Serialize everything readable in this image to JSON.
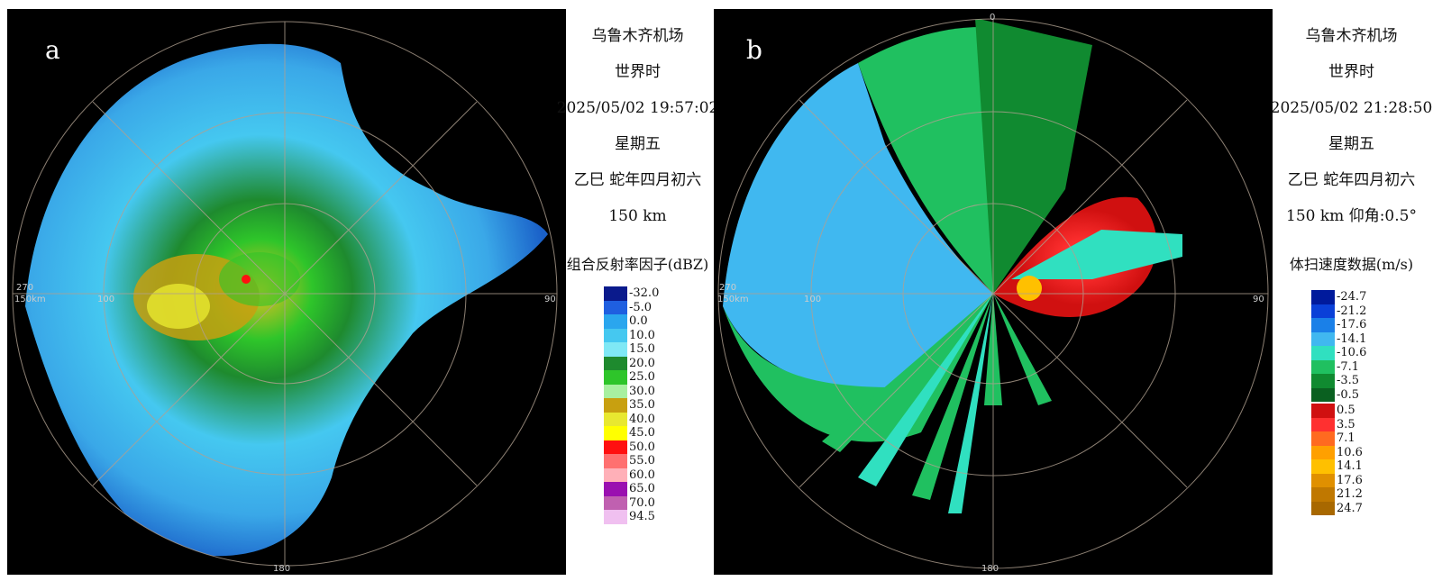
{
  "panels": [
    {
      "letter": "a",
      "station": "乌鲁木齐机场",
      "time_label": "世界时",
      "datetime": "2025/05/02 19:57:02",
      "weekday": "星期五",
      "lunar": "乙巳 蛇年四月初六",
      "range_text": "150 km",
      "legend_title": "组合反射率因子(dBZ)",
      "legend": [
        {
          "label": "-32.0",
          "color": "#0a1a8c"
        },
        {
          "label": "-5.0",
          "color": "#1f5fe0"
        },
        {
          "label": "0.0",
          "color": "#2aa6ee"
        },
        {
          "label": "10.0",
          "color": "#45c8f0"
        },
        {
          "label": "15.0",
          "color": "#7fe8f5"
        },
        {
          "label": "20.0",
          "color": "#1e8a2e"
        },
        {
          "label": "25.0",
          "color": "#2ec52a"
        },
        {
          "label": "30.0",
          "color": "#a8f0a0"
        },
        {
          "label": "35.0",
          "color": "#c8a010"
        },
        {
          "label": "40.0",
          "color": "#e8e830"
        },
        {
          "label": "45.0",
          "color": "#ffff00"
        },
        {
          "label": "50.0",
          "color": "#ff1010"
        },
        {
          "label": "55.0",
          "color": "#ff7070"
        },
        {
          "label": "60.0",
          "color": "#ffb0b8"
        },
        {
          "label": "65.0",
          "color": "#9a10b0"
        },
        {
          "label": "70.0",
          "color": "#c060b0"
        },
        {
          "label": "94.5",
          "color": "#f0c0f0"
        }
      ]
    },
    {
      "letter": "b",
      "station": "乌鲁木齐机场",
      "time_label": "世界时",
      "datetime": "2025/05/02 21:28:50",
      "weekday": "星期五",
      "lunar": "乙巳 蛇年四月初六",
      "range_text": "150 km 仰角:0.5°",
      "legend_title": "体扫速度数据(m/s)",
      "legend_neg": [
        {
          "label": "-24.7",
          "color": "#001a9c"
        },
        {
          "label": "-21.2",
          "color": "#0a40d8"
        },
        {
          "label": "-17.6",
          "color": "#1a80e8"
        },
        {
          "label": "-14.1",
          "color": "#40b8f0"
        },
        {
          "label": "-10.6",
          "color": "#30e0c0"
        },
        {
          "label": "-7.1",
          "color": "#20c060"
        },
        {
          "label": "-3.5",
          "color": "#108a30"
        },
        {
          "label": "-0.5",
          "color": "#0a6020"
        }
      ],
      "legend_pos": [
        {
          "label": "0.5",
          "color": "#d01010"
        },
        {
          "label": "3.5",
          "color": "#ff3030"
        },
        {
          "label": "7.1",
          "color": "#ff6a20"
        },
        {
          "label": "10.6",
          "color": "#ffa000"
        },
        {
          "label": "14.1",
          "color": "#ffc000"
        },
        {
          "label": "17.6",
          "color": "#e09000"
        },
        {
          "label": "21.2",
          "color": "#c07800"
        },
        {
          "label": "24.7",
          "color": "#a86800"
        }
      ]
    }
  ],
  "axis_labels": {
    "north": "0",
    "east": "90",
    "south": "180",
    "west": "270",
    "west_range": "150km",
    "ring": "100"
  }
}
